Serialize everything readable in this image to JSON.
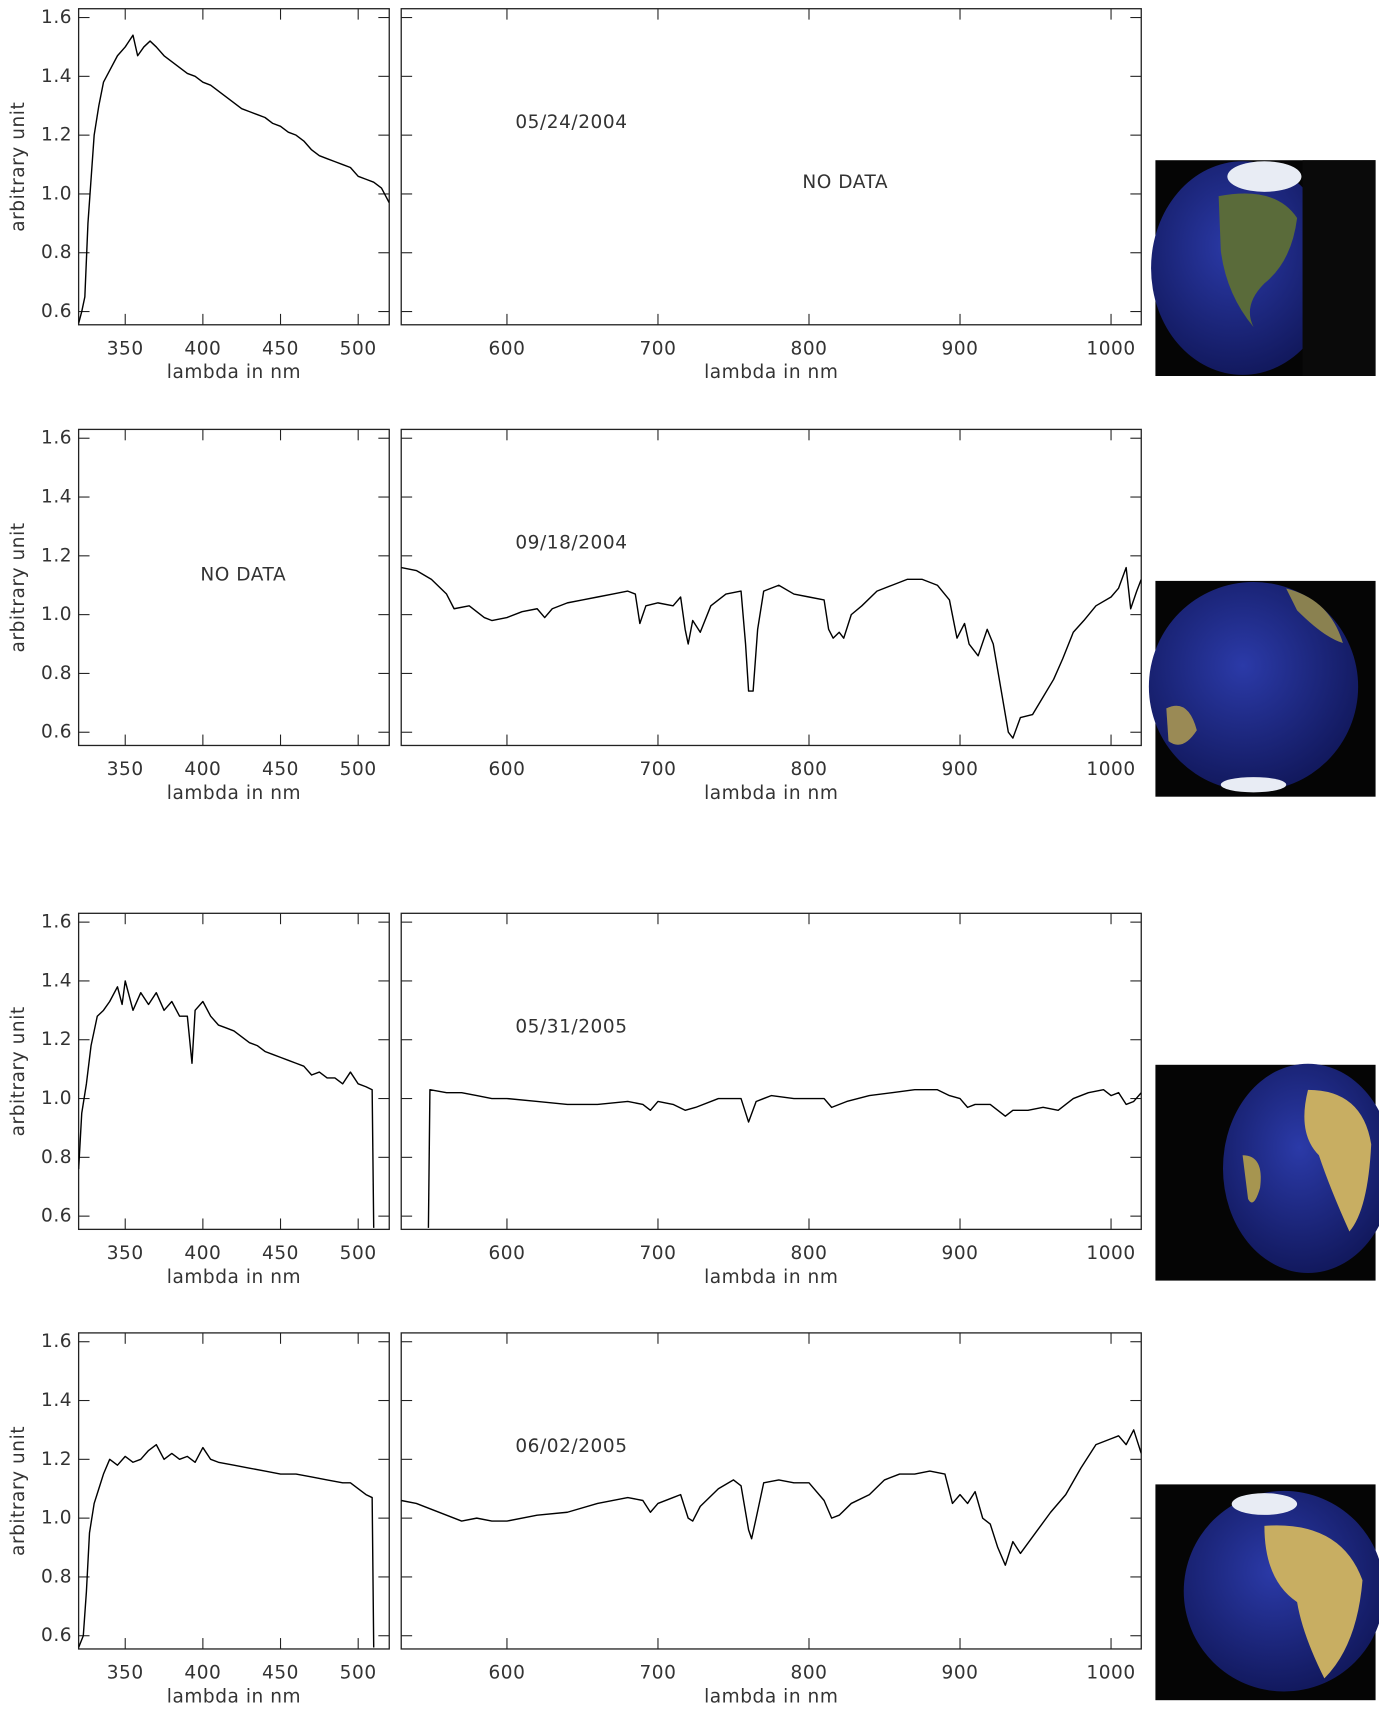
{
  "chart_data": [
    {
      "type": "line",
      "xlabel": "lambda in nm",
      "ylabel": "arbitrary unit",
      "xlim": [
        320,
        520
      ],
      "ylim": [
        0.555,
        1.63
      ],
      "xticks": [
        350,
        400,
        450,
        500
      ],
      "yticks": [
        0.6,
        0.8,
        {
          "value": 1,
          "label": "1.0"
        },
        1.2,
        1.4,
        1.6
      ],
      "ytick_labels": true,
      "color": "#000000",
      "x": [
        320,
        322,
        324,
        326,
        328,
        330,
        333,
        336,
        340,
        345,
        350,
        355,
        358,
        362,
        366,
        370,
        375,
        380,
        385,
        390,
        395,
        400,
        405,
        410,
        415,
        420,
        425,
        430,
        435,
        440,
        445,
        450,
        455,
        460,
        465,
        470,
        475,
        480,
        485,
        490,
        495,
        500,
        505,
        510,
        515,
        520
      ],
      "values": [
        0.56,
        0.6,
        0.65,
        0.9,
        1.05,
        1.2,
        1.3,
        1.38,
        1.42,
        1.47,
        1.5,
        1.54,
        1.47,
        1.5,
        1.52,
        1.5,
        1.47,
        1.45,
        1.43,
        1.41,
        1.4,
        1.38,
        1.37,
        1.35,
        1.33,
        1.31,
        1.29,
        1.28,
        1.27,
        1.26,
        1.24,
        1.23,
        1.21,
        1.2,
        1.18,
        1.15,
        1.13,
        1.12,
        1.11,
        1.1,
        1.09,
        1.06,
        1.05,
        1.04,
        1.02,
        0.97
      ]
    },
    {
      "type": "line",
      "xlabel": "lambda in nm",
      "xlim": [
        530,
        1020
      ],
      "ylim": [
        0.555,
        1.63
      ],
      "xticks": [
        600,
        700,
        800,
        900,
        1000
      ],
      "yticks": [
        0.6,
        0.8,
        1,
        1.2,
        1.4,
        1.6
      ],
      "ytick_labels": false,
      "color": "#000000",
      "annotations": [
        "05/24/2004",
        "NO DATA"
      ]
    },
    {
      "type": "line",
      "xlabel": "lambda in nm",
      "ylabel": "arbitrary unit",
      "xlim": [
        320,
        520
      ],
      "ylim": [
        0.555,
        1.63
      ],
      "xticks": [
        350,
        400,
        450,
        500
      ],
      "yticks": [
        0.6,
        0.8,
        {
          "value": 1,
          "label": "1.0"
        },
        1.2,
        1.4,
        1.6
      ],
      "ytick_labels": true,
      "color": "#000000",
      "annotations": [
        "NO DATA"
      ]
    },
    {
      "type": "line",
      "xlabel": "lambda in nm",
      "xlim": [
        530,
        1020
      ],
      "ylim": [
        0.555,
        1.63
      ],
      "xticks": [
        600,
        700,
        800,
        900,
        1000
      ],
      "yticks": [
        0.6,
        0.8,
        1,
        1.2,
        1.4,
        1.6
      ],
      "ytick_labels": false,
      "color": "#000000",
      "annotations": [
        "09/18/2004"
      ],
      "x": [
        530,
        540,
        550,
        560,
        565,
        575,
        580,
        585,
        590,
        600,
        610,
        620,
        625,
        630,
        640,
        650,
        660,
        670,
        680,
        685,
        688,
        692,
        700,
        710,
        715,
        718,
        720,
        723,
        728,
        735,
        745,
        755,
        758,
        760,
        763,
        766,
        770,
        780,
        790,
        800,
        810,
        813,
        816,
        820,
        823,
        828,
        835,
        845,
        855,
        865,
        875,
        885,
        893,
        898,
        903,
        906,
        912,
        918,
        922,
        927,
        932,
        935,
        940,
        948,
        955,
        962,
        968,
        975,
        982,
        990,
        1000,
        1005,
        1010,
        1013,
        1017,
        1020
      ],
      "values": [
        1.16,
        1.15,
        1.12,
        1.07,
        1.02,
        1.03,
        1.01,
        0.99,
        0.98,
        0.99,
        1.01,
        1.02,
        0.99,
        1.02,
        1.04,
        1.05,
        1.06,
        1.07,
        1.08,
        1.07,
        0.97,
        1.03,
        1.04,
        1.03,
        1.06,
        0.95,
        0.9,
        0.98,
        0.94,
        1.03,
        1.07,
        1.08,
        0.9,
        0.74,
        0.74,
        0.95,
        1.08,
        1.1,
        1.07,
        1.06,
        1.05,
        0.95,
        0.92,
        0.94,
        0.92,
        1.0,
        1.03,
        1.08,
        1.1,
        1.12,
        1.12,
        1.1,
        1.05,
        0.92,
        0.97,
        0.9,
        0.86,
        0.95,
        0.9,
        0.75,
        0.6,
        0.58,
        0.65,
        0.66,
        0.72,
        0.78,
        0.85,
        0.94,
        0.98,
        1.03,
        1.06,
        1.09,
        1.16,
        1.02,
        1.08,
        1.12
      ]
    },
    {
      "type": "line",
      "xlabel": "lambda in nm",
      "ylabel": "arbitrary unit",
      "xlim": [
        320,
        520
      ],
      "ylim": [
        0.555,
        1.63
      ],
      "xticks": [
        350,
        400,
        450,
        500
      ],
      "yticks": [
        0.6,
        0.8,
        {
          "value": 1,
          "label": "1.0"
        },
        1.2,
        1.4,
        1.6
      ],
      "ytick_labels": true,
      "color": "#000000",
      "x": [
        320,
        322,
        325,
        328,
        332,
        336,
        340,
        345,
        348,
        350,
        355,
        360,
        365,
        370,
        375,
        380,
        385,
        390,
        393,
        395,
        400,
        405,
        410,
        415,
        420,
        425,
        430,
        435,
        440,
        445,
        450,
        455,
        460,
        465,
        470,
        475,
        480,
        485,
        490,
        495,
        500,
        505,
        509,
        510
      ],
      "values": [
        0.76,
        0.95,
        1.05,
        1.18,
        1.28,
        1.3,
        1.33,
        1.38,
        1.32,
        1.4,
        1.3,
        1.36,
        1.32,
        1.36,
        1.3,
        1.33,
        1.28,
        1.28,
        1.12,
        1.3,
        1.33,
        1.28,
        1.25,
        1.24,
        1.23,
        1.21,
        1.19,
        1.18,
        1.16,
        1.15,
        1.14,
        1.13,
        1.12,
        1.11,
        1.08,
        1.09,
        1.07,
        1.07,
        1.05,
        1.09,
        1.05,
        1.04,
        1.03,
        0.56
      ]
    },
    {
      "type": "line",
      "xlabel": "lambda in nm",
      "xlim": [
        530,
        1020
      ],
      "ylim": [
        0.555,
        1.63
      ],
      "xticks": [
        600,
        700,
        800,
        900,
        1000
      ],
      "yticks": [
        0.6,
        0.8,
        1,
        1.2,
        1.4,
        1.6
      ],
      "ytick_labels": false,
      "color": "#000000",
      "annotations": [
        "05/31/2005"
      ],
      "x": [
        548,
        549,
        560,
        570,
        580,
        590,
        600,
        620,
        640,
        660,
        680,
        690,
        695,
        700,
        710,
        718,
        725,
        740,
        755,
        760,
        765,
        775,
        790,
        800,
        810,
        815,
        825,
        840,
        855,
        870,
        885,
        893,
        900,
        905,
        910,
        920,
        930,
        935,
        945,
        955,
        965,
        975,
        985,
        995,
        1000,
        1005,
        1010,
        1015,
        1020
      ],
      "values": [
        0.56,
        1.03,
        1.02,
        1.02,
        1.01,
        1.0,
        1.0,
        0.99,
        0.98,
        0.98,
        0.99,
        0.98,
        0.96,
        0.99,
        0.98,
        0.96,
        0.97,
        1.0,
        1.0,
        0.92,
        0.99,
        1.01,
        1.0,
        1.0,
        1.0,
        0.97,
        0.99,
        1.01,
        1.02,
        1.03,
        1.03,
        1.01,
        1.0,
        0.97,
        0.98,
        0.98,
        0.94,
        0.96,
        0.96,
        0.97,
        0.96,
        1.0,
        1.02,
        1.03,
        1.01,
        1.02,
        0.98,
        0.99,
        1.02
      ]
    },
    {
      "type": "line",
      "xlabel": "lambda in nm",
      "ylabel": "arbitrary unit",
      "xlim": [
        320,
        520
      ],
      "ylim": [
        0.555,
        1.63
      ],
      "xticks": [
        350,
        400,
        450,
        500
      ],
      "yticks": [
        0.6,
        0.8,
        {
          "value": 1,
          "label": "1.0"
        },
        1.2,
        1.4,
        1.6
      ],
      "ytick_labels": true,
      "color": "#000000",
      "x": [
        320,
        323,
        325,
        327,
        330,
        333,
        336,
        340,
        345,
        350,
        355,
        360,
        365,
        370,
        375,
        380,
        385,
        390,
        395,
        400,
        405,
        410,
        420,
        430,
        440,
        450,
        460,
        470,
        480,
        490,
        495,
        500,
        505,
        509,
        510
      ],
      "values": [
        0.56,
        0.6,
        0.75,
        0.95,
        1.05,
        1.1,
        1.15,
        1.2,
        1.18,
        1.21,
        1.19,
        1.2,
        1.23,
        1.25,
        1.2,
        1.22,
        1.2,
        1.21,
        1.19,
        1.24,
        1.2,
        1.19,
        1.18,
        1.17,
        1.16,
        1.15,
        1.15,
        1.14,
        1.13,
        1.12,
        1.12,
        1.1,
        1.08,
        1.07,
        0.56
      ]
    },
    {
      "type": "line",
      "xlabel": "lambda in nm",
      "xlim": [
        530,
        1020
      ],
      "ylim": [
        0.555,
        1.63
      ],
      "xticks": [
        600,
        700,
        800,
        900,
        1000
      ],
      "yticks": [
        0.6,
        0.8,
        1,
        1.2,
        1.4,
        1.6
      ],
      "ytick_labels": false,
      "color": "#000000",
      "annotations": [
        "06/02/2005"
      ],
      "x": [
        530,
        540,
        550,
        560,
        570,
        580,
        590,
        600,
        620,
        640,
        660,
        680,
        690,
        695,
        700,
        710,
        715,
        720,
        723,
        728,
        740,
        750,
        755,
        760,
        762,
        765,
        770,
        780,
        790,
        800,
        810,
        815,
        820,
        828,
        840,
        850,
        860,
        870,
        880,
        890,
        895,
        900,
        905,
        910,
        915,
        920,
        925,
        930,
        935,
        940,
        950,
        960,
        970,
        980,
        990,
        1000,
        1005,
        1010,
        1015,
        1020
      ],
      "values": [
        1.06,
        1.05,
        1.03,
        1.01,
        0.99,
        1.0,
        0.99,
        0.99,
        1.01,
        1.02,
        1.05,
        1.07,
        1.06,
        1.02,
        1.05,
        1.07,
        1.08,
        1.0,
        0.99,
        1.04,
        1.1,
        1.13,
        1.11,
        0.96,
        0.93,
        1.0,
        1.12,
        1.13,
        1.12,
        1.12,
        1.06,
        1.0,
        1.01,
        1.05,
        1.08,
        1.13,
        1.15,
        1.15,
        1.16,
        1.15,
        1.05,
        1.08,
        1.05,
        1.09,
        1.0,
        0.98,
        0.9,
        0.84,
        0.92,
        0.88,
        0.95,
        1.02,
        1.08,
        1.17,
        1.25,
        1.27,
        1.28,
        1.25,
        1.3,
        1.22
      ]
    }
  ]
}
